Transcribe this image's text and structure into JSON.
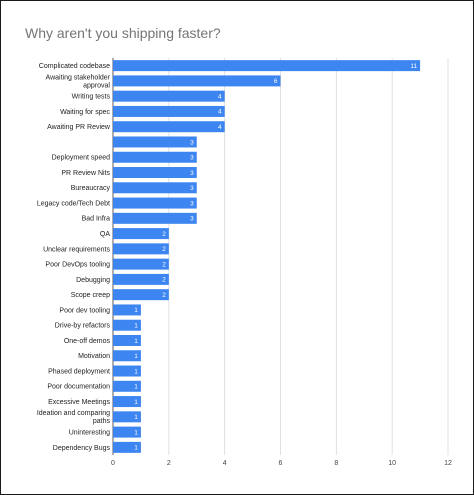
{
  "chart_data": {
    "type": "bar",
    "orientation": "horizontal",
    "title": "Why aren't you shipping faster?",
    "xlabel": "",
    "ylabel": "",
    "xlim": [
      0,
      12
    ],
    "x_ticks": [
      0,
      2,
      4,
      6,
      8,
      10,
      12
    ],
    "grid": true,
    "legend": "none",
    "bar_color": "#3d85f0",
    "categories": [
      [
        "Complicated codebase"
      ],
      [
        "Awaiting stakeholder",
        "approval"
      ],
      [
        "Writing tests"
      ],
      [
        "Waiting for spec"
      ],
      [
        "Awaiting PR Review"
      ],
      [
        ""
      ],
      [
        "Deployment speed"
      ],
      [
        "PR Review Nits"
      ],
      [
        "Bureaucracy"
      ],
      [
        "Legacy code/Tech Debt"
      ],
      [
        "Bad Infra"
      ],
      [
        "QA"
      ],
      [
        "Unclear requirements"
      ],
      [
        "Poor DevOps tooling"
      ],
      [
        "Debugging"
      ],
      [
        "Scope creep"
      ],
      [
        "Poor dev tooling"
      ],
      [
        "Drive-by refactors"
      ],
      [
        "One-off demos"
      ],
      [
        "Motivation"
      ],
      [
        "Phased deployment"
      ],
      [
        "Poor documentation"
      ],
      [
        "Excessive Meetings"
      ],
      [
        "Ideation and comparing",
        "paths"
      ],
      [
        "Uninteresting"
      ],
      [
        "Dependency Bugs"
      ]
    ],
    "values": [
      11,
      6,
      4,
      4,
      4,
      3,
      3,
      3,
      3,
      3,
      3,
      2,
      2,
      2,
      2,
      2,
      1,
      1,
      1,
      1,
      1,
      1,
      1,
      1,
      1,
      1
    ]
  }
}
